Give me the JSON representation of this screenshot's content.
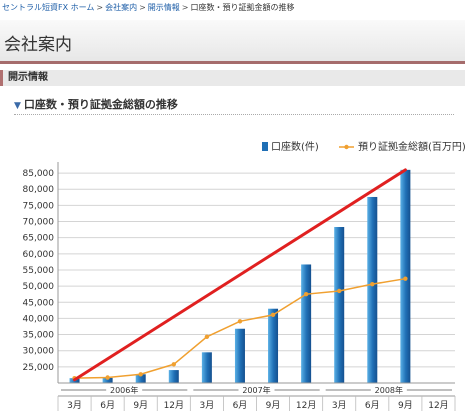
{
  "breadcrumb": {
    "home": "セントラル短資FX ホーム",
    "company": "会社案内",
    "disclosure": "開示情報",
    "current": "口座数・預り証拠金額の推移",
    "separator": ">"
  },
  "page_title": "会社案内",
  "section_title": "開示情報",
  "subsection_title": "口座数・預り証拠金総額の推移",
  "colors": {
    "bar": "#1f6fb5",
    "line": "#f0a030",
    "trend": "#e02020",
    "accent": "#a56c6c"
  },
  "chart_data": {
    "type": "bar",
    "legend": [
      "口座数(件)",
      "預り証拠金総額(百万円)"
    ],
    "legend_position": "top-right",
    "categories": [
      "3月",
      "6月",
      "9月",
      "12月",
      "3月",
      "6月",
      "9月",
      "12月",
      "3月",
      "6月",
      "9月",
      "12月"
    ],
    "years": [
      {
        "label": "2006年",
        "start": 0,
        "end": 3
      },
      {
        "label": "2007年",
        "start": 4,
        "end": 7
      },
      {
        "label": "2008年",
        "start": 8,
        "end": 11
      }
    ],
    "ylim": [
      20000,
      87500
    ],
    "yticks": [
      "25,000",
      "30,000",
      "35,000",
      "40,000",
      "45,000",
      "50,000",
      "55,000",
      "60,000",
      "65,000",
      "70,000",
      "75,000",
      "80,000",
      "85,000"
    ],
    "ytick_values": [
      25000,
      30000,
      35000,
      40000,
      45000,
      50000,
      55000,
      60000,
      65000,
      70000,
      75000,
      80000,
      85000
    ],
    "grid": true,
    "series": [
      {
        "name": "口座数(件)",
        "kind": "bar",
        "values": [
          21500,
          21600,
          22700,
          24000,
          29500,
          36800,
          43000,
          56700,
          68300,
          77600,
          86000,
          null
        ]
      },
      {
        "name": "預り証拠金総額(百万円)",
        "kind": "line",
        "values": [
          21500,
          21700,
          22700,
          25800,
          34300,
          39100,
          41100,
          47500,
          48500,
          50600,
          52300,
          null
        ]
      }
    ],
    "trend_line": {
      "from": {
        "index": 0,
        "value": 21000
      },
      "to": {
        "index": 10,
        "value": 86000
      }
    }
  }
}
